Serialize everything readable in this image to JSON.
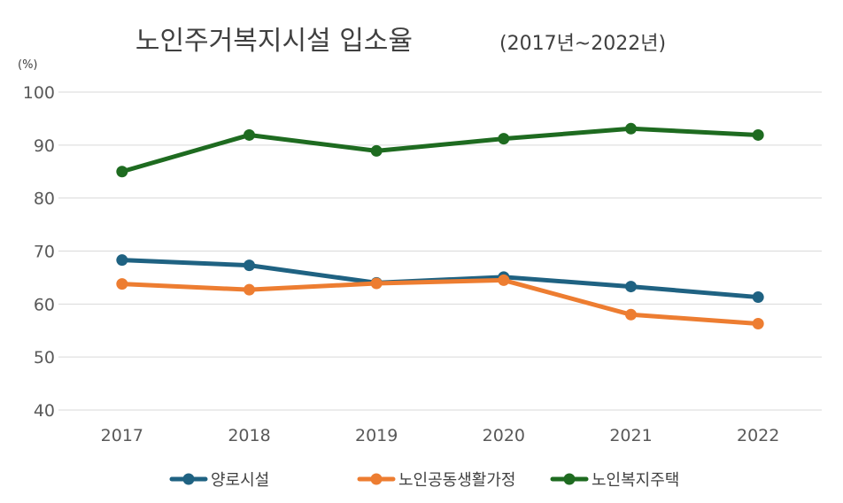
{
  "chart_data": {
    "type": "line",
    "title": "노인주거복지시설 입소율",
    "subtitle": "(2017년~2022년)",
    "unit_label": "(%)",
    "xlabel": "",
    "ylabel": "",
    "categories": [
      "2017",
      "2018",
      "2019",
      "2020",
      "2021",
      "2022"
    ],
    "ylim": [
      40,
      100
    ],
    "yticks": [
      40,
      50,
      60,
      70,
      80,
      90,
      100
    ],
    "grid": true,
    "legend_position": "bottom",
    "series": [
      {
        "name": "양로시설",
        "color": "#1f6282",
        "values": [
          68.3,
          67.3,
          64.0,
          65.1,
          63.3,
          61.3
        ]
      },
      {
        "name": "노인공동생활가정",
        "color": "#ed7d31",
        "values": [
          63.8,
          62.7,
          63.9,
          64.5,
          58.0,
          56.3
        ]
      },
      {
        "name": "노인복지주택",
        "color": "#1e6b20",
        "values": [
          85.0,
          91.9,
          88.9,
          91.2,
          93.1,
          91.9
        ]
      }
    ]
  }
}
